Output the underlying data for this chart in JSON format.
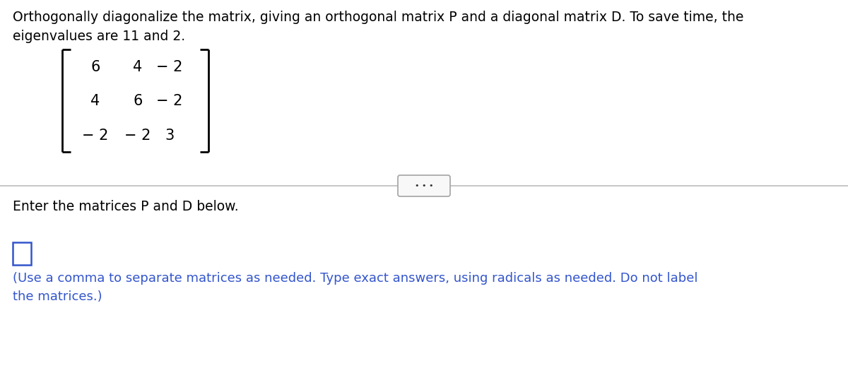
{
  "title_text": "Orthogonally diagonalize the matrix, giving an orthogonal matrix P and a diagonal matrix D. To save time, the\neigenvalues are 11 and 2.",
  "matrix_rows": [
    [
      "6",
      "4",
      "− 2"
    ],
    [
      "4",
      "6",
      "− 2"
    ],
    [
      "− 2",
      "− 2",
      "3"
    ]
  ],
  "divider_text": "⋯",
  "enter_text": "Enter the matrices P and D below.",
  "note_text": "(Use a comma to separate matrices as needed. Type exact answers, using radicals as needed. Do not label\nthe matrices.)",
  "bg_color": "#ffffff",
  "text_color": "#000000",
  "blue_color": "#3355cc",
  "title_fontsize": 13.5,
  "matrix_fontsize": 15,
  "note_fontsize": 13.0,
  "enter_fontsize": 13.5,
  "bracket_color": "#000000",
  "divider_line_color": "#bbbbbb",
  "btn_edge_color": "#aaaaaa",
  "btn_face_color": "#f8f8f8",
  "btn_text_color": "#333333"
}
